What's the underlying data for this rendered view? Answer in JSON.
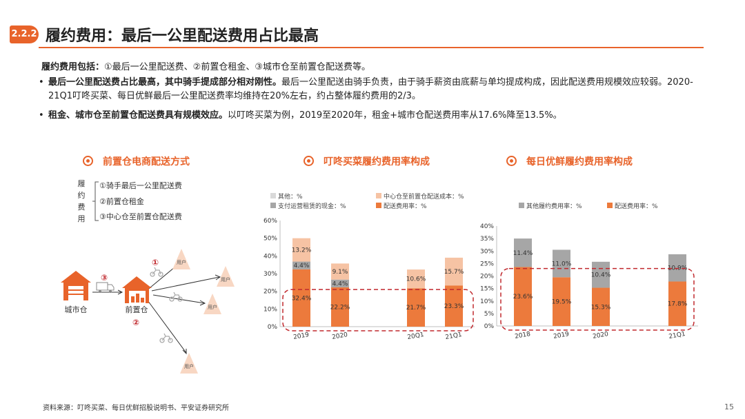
{
  "header": {
    "section_number": "2.2.2",
    "title": "履约费用：最后一公里配送费用占比最高"
  },
  "intro": {
    "label": "履约费用包括：",
    "text": "①最后一公里配送费、②前置仓租金、③城市仓至前置仓配送费等。"
  },
  "bullets": [
    {
      "bold": "最后一公里配送费占比最高，其中骑手提成部分相对刚性。",
      "text": "最后一公里配送由骑手负责，由于骑手薪资由底薪与单均提成构成，因此配送费用规模效应较弱。2020-21Q1叮咚买菜、每日优鲜最后一公里配送费率均维持在20%左右，约占整体履约费用的2/3。"
    },
    {
      "bold": "租金、城市仓至前置仓配送费具有规模效应。",
      "text": "以叮咚买菜为例，2019至2020年，租金+城市仓配送费用率从17.6%降至13.5%。"
    }
  ],
  "diagram": {
    "title": "前置仓电商配送方式",
    "bracket_label": "履约费用",
    "items": [
      "①骑手最后一公里配送费",
      "②前置仓租金",
      "③中心仓至前置仓配送费"
    ],
    "city_warehouse": "城市仓",
    "front_warehouse": "前置仓",
    "user_label": "用户",
    "marker_1": "①",
    "marker_2": "②",
    "marker_3": "③"
  },
  "chart_data": [
    {
      "type": "bar",
      "stacked": true,
      "title": "叮咚买菜履约费用率构成",
      "categories": [
        "2019",
        "2020",
        "20Q1",
        "21Q1"
      ],
      "series": [
        {
          "name": "配送费用率：%",
          "color": "#ec7a3c",
          "values": [
            32.4,
            22.2,
            21.7,
            23.3
          ],
          "labels": [
            "32.4%",
            "22.2%",
            "21.7%",
            "23.3%"
          ]
        },
        {
          "name": "支付运营租赁的现金：%",
          "color": "#a6a6a6",
          "values": [
            4.4,
            4.4,
            0,
            0
          ],
          "labels": [
            "4.4%",
            "4.4%",
            "",
            ""
          ]
        },
        {
          "name": "中心仓至前置仓配送成本：%",
          "color": "#f6c3a4",
          "values": [
            13.2,
            9.1,
            10.6,
            15.7
          ],
          "labels": [
            "13.2%",
            "9.1%",
            "10.6%",
            "15.7%"
          ]
        },
        {
          "name": "其他：%",
          "color": "#d9d9d9",
          "values": [
            0,
            0,
            0,
            0
          ],
          "labels": [
            "",
            "",
            "",
            ""
          ]
        }
      ],
      "y_ticks": [
        "0%",
        "10%",
        "20%",
        "30%",
        "40%",
        "50%",
        "60%"
      ],
      "ylim": [
        0,
        60
      ],
      "grid": false,
      "legend_position": "top"
    },
    {
      "type": "bar",
      "stacked": true,
      "title": "每日优鲜履约费用率构成",
      "categories": [
        "2018",
        "2019",
        "2020",
        "21Q1"
      ],
      "series": [
        {
          "name": "配送费用率：%",
          "color": "#ec7a3c",
          "values": [
            23.6,
            19.5,
            15.3,
            17.8
          ],
          "labels": [
            "23.6%",
            "19.5%",
            "15.3%",
            "17.8%"
          ]
        },
        {
          "name": "其他履约费用率：%",
          "color": "#a6a6a6",
          "values": [
            11.4,
            11.0,
            10.4,
            10.9
          ],
          "labels": [
            "11.4%",
            "11.0%",
            "10.4%",
            "10.9%"
          ]
        }
      ],
      "y_ticks": [
        "0%",
        "5%",
        "10%",
        "15%",
        "20%",
        "25%",
        "30%",
        "35%",
        "40%"
      ],
      "ylim": [
        0,
        40
      ],
      "grid": false,
      "legend_position": "top"
    }
  ],
  "footer": {
    "source": "资料来源：叮咚买菜、每日优鲜招股说明书、平安证券研究所",
    "page_number": "15"
  },
  "colors": {
    "accent": "#e8632a",
    "highlight_box": "#c0282d"
  }
}
